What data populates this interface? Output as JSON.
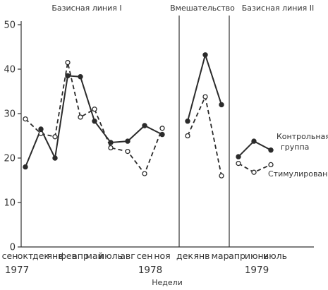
{
  "chart_data": {
    "type": "line",
    "xlabel": "Недели",
    "ylabel": "",
    "ylim": [
      0,
      50
    ],
    "yticks": [
      0,
      10,
      20,
      30,
      40,
      50
    ],
    "months": [
      "сен",
      "окт",
      "дек",
      "янв",
      "фев",
      "апр",
      "май",
      "июль",
      "авг",
      "сен",
      "ноя",
      "дек",
      "янв",
      "мар",
      "апр",
      "июнь",
      "июль"
    ],
    "years": [
      {
        "label": "1977",
        "at_month_index": 0
      },
      {
        "label": "1978",
        "at_month_index": 7.5
      },
      {
        "label": "1979",
        "at_month_index": 14.5
      }
    ],
    "phases": [
      {
        "title": "Базисная линия I",
        "start_index": 0,
        "end_index": 10
      },
      {
        "title": "Вмешательство",
        "start_index": 11,
        "end_index": 13
      },
      {
        "title": "Базисная линия II",
        "start_index": 14,
        "end_index": 16
      }
    ],
    "phase_breaks_after_index": [
      10,
      13
    ],
    "series": [
      {
        "name": "Контрольная группа",
        "name_lines": [
          "Контрольная",
          "группа"
        ],
        "style": "solid-filled",
        "color": "#2b2b2b",
        "points": [
          {
            "i": 0,
            "y": 18
          },
          {
            "i": 1,
            "y": 26.5
          },
          {
            "i": 2,
            "y": 20
          },
          {
            "i": 3,
            "y": 38.5
          },
          {
            "i": 4,
            "y": 38.3
          },
          {
            "i": 5,
            "y": 28.3
          },
          {
            "i": 6,
            "y": 23.5
          },
          {
            "i": 7,
            "y": 23.8
          },
          {
            "i": 8,
            "y": 27.3
          },
          {
            "i": 9,
            "y": 25.3
          },
          {
            "i": 10,
            "y": 28.3,
            "segment": 2
          },
          {
            "i": 11,
            "y": 43.2,
            "segment": 2
          },
          {
            "i": 12,
            "y": 32,
            "segment": 2
          },
          {
            "i": 13,
            "y": 20.3,
            "segment": 3
          },
          {
            "i": 14,
            "y": 23.8,
            "segment": 3
          },
          {
            "i": 15,
            "y": 21.8,
            "segment": 3
          }
        ]
      },
      {
        "name": "Стимулирование",
        "name_lines": [
          "Стимулирование"
        ],
        "style": "dashed-open",
        "color": "#2b2b2b",
        "points": [
          {
            "i": 0,
            "y": 28.8
          },
          {
            "i": 1,
            "y": 25.5
          },
          {
            "i": 2,
            "y": 24.8
          },
          {
            "i": 3,
            "y": 41.5
          },
          {
            "i": 4,
            "y": 29.2
          },
          {
            "i": 5,
            "y": 31
          },
          {
            "i": 6,
            "y": 22.3
          },
          {
            "i": 7,
            "y": 21.5
          },
          {
            "i": 8,
            "y": 16.5
          },
          {
            "i": 9,
            "y": 26.7
          },
          {
            "i": 10,
            "y": 25,
            "segment": 2
          },
          {
            "i": 11,
            "y": 33.8,
            "segment": 2
          },
          {
            "i": 12,
            "y": 16,
            "segment": 2
          },
          {
            "i": 13,
            "y": 18.8,
            "segment": 3
          },
          {
            "i": 14,
            "y": 16.8,
            "segment": 3
          },
          {
            "i": 15,
            "y": 18.5,
            "segment": 3
          }
        ]
      }
    ]
  }
}
